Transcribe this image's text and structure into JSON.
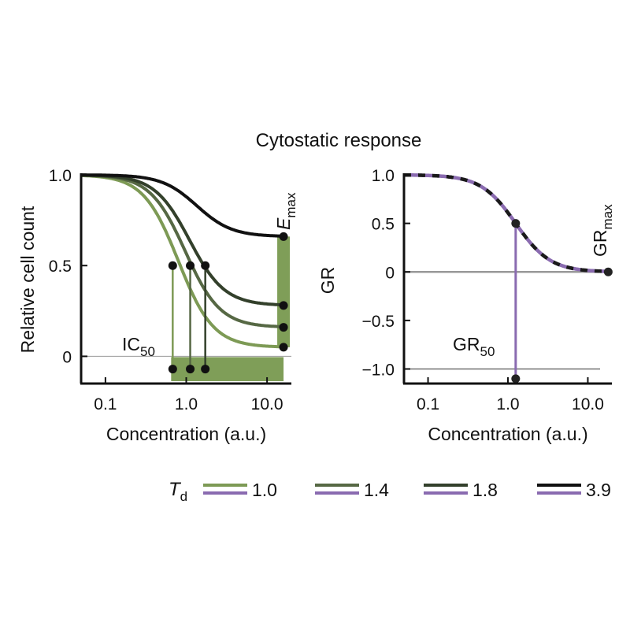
{
  "title": "Cytostatic response",
  "colors": {
    "td_1_0": "#7d9a55",
    "td_1_4": "#566844",
    "td_1_8": "#33402b",
    "td_3_9": "#111111",
    "gr_purple": "#8a6bb0",
    "shade": "#7f9e58"
  },
  "chart_data": [
    {
      "type": "line",
      "panel": "left",
      "xlabel": "Concentration (a.u.)",
      "ylabel": "Relative cell count",
      "xscale": "log",
      "xlim": [
        0.05,
        20
      ],
      "ylim": [
        -0.15,
        1.0
      ],
      "xticks": [
        0.1,
        1.0,
        10.0
      ],
      "xtick_labels": [
        "0.1",
        "1.0",
        "10.0"
      ],
      "yticks": [
        0,
        0.5,
        1.0
      ],
      "ytick_labels": [
        "0",
        "0.5",
        "1.0"
      ],
      "series": [
        {
          "name": "1.0",
          "color_key": "td_1_0",
          "ec50": 0.8,
          "hill": 2,
          "emax": 0.05,
          "ic50": 0.68
        },
        {
          "name": "1.4",
          "color_key": "td_1_4",
          "ec50": 0.97,
          "hill": 2,
          "emax": 0.16,
          "ic50": 1.12
        },
        {
          "name": "1.8",
          "color_key": "td_1_8",
          "ec50": 1.1,
          "hill": 2,
          "emax": 0.28,
          "ic50": 1.72
        },
        {
          "name": "3.9",
          "color_key": "td_3_9",
          "ec50": 1.35,
          "hill": 2,
          "emax": 0.66,
          "ic50": null
        }
      ],
      "emax_concentration": 16,
      "annotations": {
        "ic50_main": "IC",
        "ic50_sub": "50",
        "emax_main": "E",
        "emax_sub": "max"
      }
    },
    {
      "type": "line",
      "panel": "right",
      "xlabel": "Concentration (a.u.)",
      "ylabel": "GR",
      "xscale": "log",
      "xlim": [
        0.05,
        20
      ],
      "ylim": [
        -1.15,
        1.0
      ],
      "xticks": [
        0.1,
        1.0,
        10.0
      ],
      "xtick_labels": [
        "0.1",
        "1.0",
        "10.0"
      ],
      "yticks": [
        1.0,
        0.5,
        0,
        -0.5,
        -1.0
      ],
      "ytick_labels": [
        "1.0",
        "0.5",
        "0",
        "−0.5",
        "−1.0"
      ],
      "curve": {
        "gr50": 1.25,
        "hill": 2,
        "grmax": 0
      },
      "gr50_point": [
        1.25,
        0.5
      ],
      "grmax_point": [
        18,
        0
      ],
      "annotations": {
        "gr50_main": "GR",
        "gr50_sub": "50",
        "grmax_main": "GR",
        "grmax_sub": "max"
      }
    }
  ],
  "legend": {
    "symbol_main": "T",
    "symbol_sub": "d",
    "entries": [
      {
        "label": "1.0",
        "top_color_key": "td_1_0",
        "bottom_color_key": "gr_purple"
      },
      {
        "label": "1.4",
        "top_color_key": "td_1_4",
        "bottom_color_key": "gr_purple"
      },
      {
        "label": "1.8",
        "top_color_key": "td_1_8",
        "bottom_color_key": "gr_purple"
      },
      {
        "label": "3.9",
        "top_color_key": "td_3_9",
        "bottom_color_key": "gr_purple"
      }
    ]
  }
}
